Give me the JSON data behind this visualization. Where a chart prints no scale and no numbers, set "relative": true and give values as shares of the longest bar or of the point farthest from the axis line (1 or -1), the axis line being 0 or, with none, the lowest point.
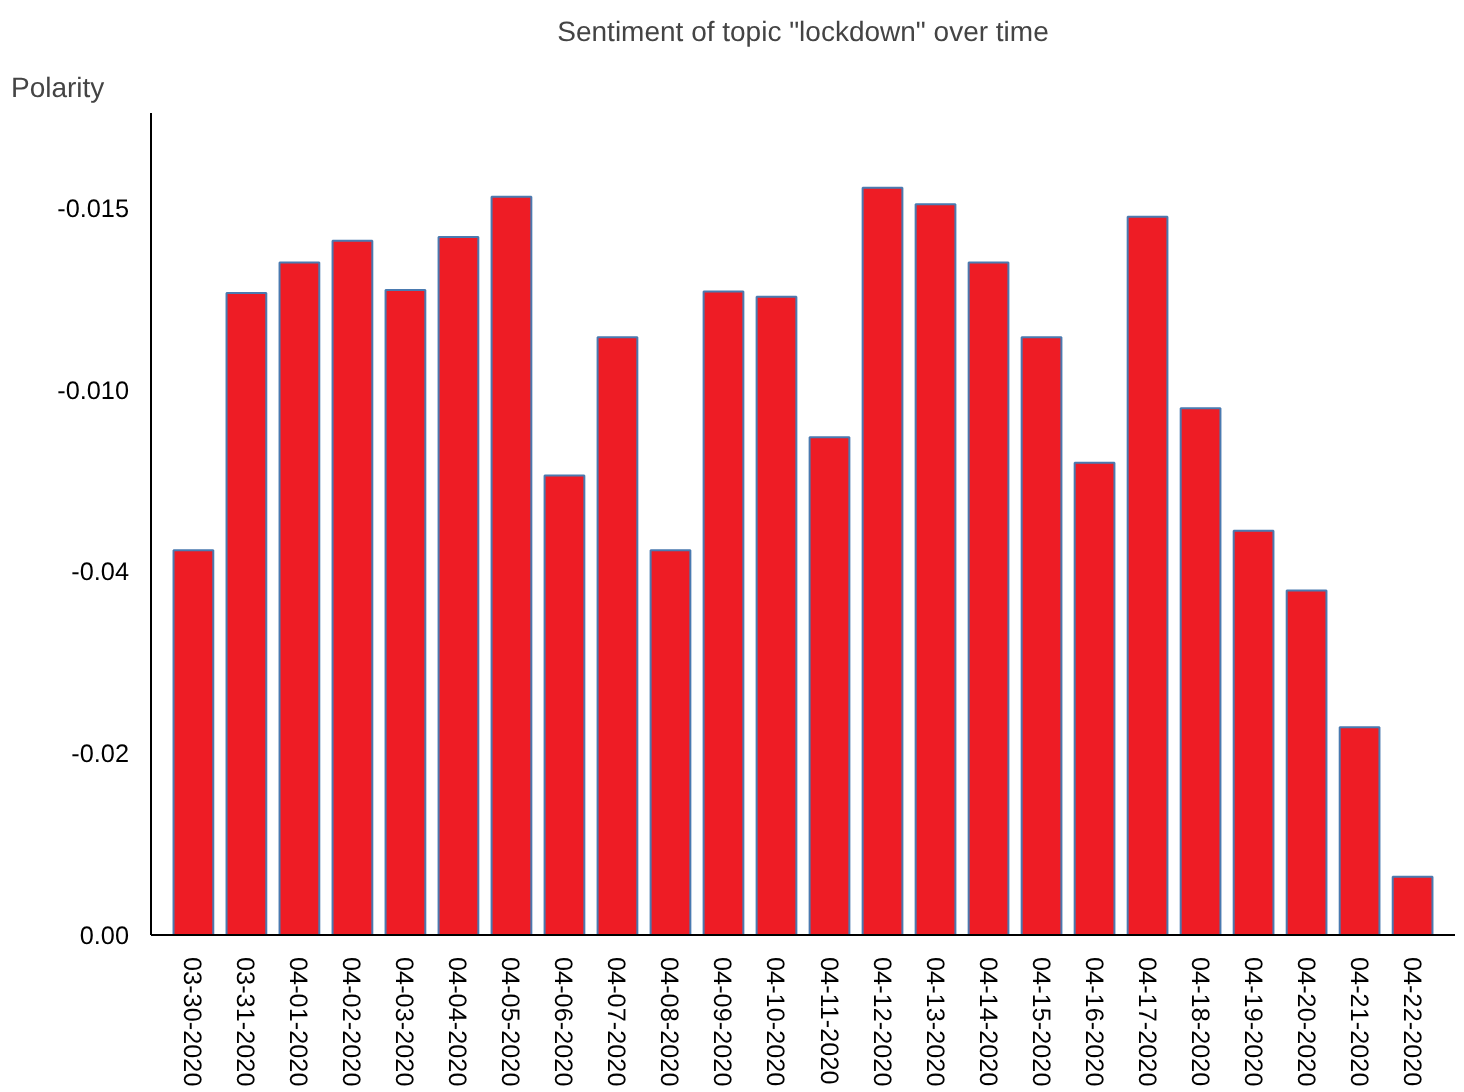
{
  "chart_data": {
    "type": "bar",
    "title": "Sentiment of topic \"lockdown\" over time",
    "ylabel": "Polarity",
    "relative": true,
    "categories": [
      "03-30-2020",
      "03-31-2020",
      "04-01-2020",
      "04-02-2020",
      "04-03-2020",
      "04-04-2020",
      "04-05-2020",
      "04-06-2020",
      "04-07-2020",
      "04-08-2020",
      "04-09-2020",
      "04-10-2020",
      "04-11-2020",
      "04-12-2020",
      "04-13-2020",
      "04-14-2020",
      "04-15-2020",
      "04-16-2020",
      "04-17-2020",
      "04-18-2020",
      "04-19-2020",
      "04-20-2020",
      "04-21-2020",
      "04-22-2020"
    ],
    "values": [
      0.515,
      0.859,
      0.9,
      0.929,
      0.863,
      0.934,
      0.988,
      0.615,
      0.8,
      0.515,
      0.861,
      0.854,
      0.666,
      1,
      0.978,
      0.9,
      0.8,
      0.632,
      0.961,
      0.705,
      0.541,
      0.461,
      0.278,
      0.078
    ],
    "color": "#ee1c25",
    "annotations": [
      "0.00",
      "-0.02",
      "-0.04",
      "-0.010",
      "-0.015"
    ]
  }
}
